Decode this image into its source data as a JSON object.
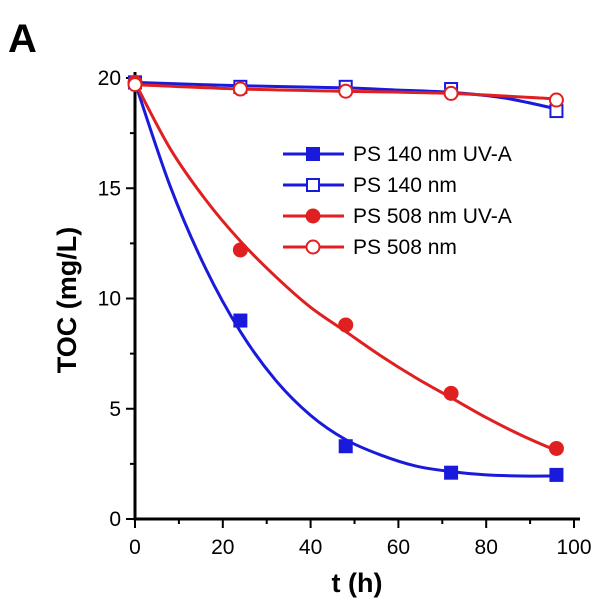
{
  "panel_label": "A",
  "chart_data": {
    "type": "scatter",
    "xlabel": "t (h)",
    "ylabel": "TOC (mg/L)",
    "xlim": [
      0,
      100
    ],
    "ylim": [
      0,
      20
    ],
    "xticks": [
      0,
      20,
      40,
      60,
      80,
      100
    ],
    "yticks": [
      0,
      5,
      10,
      15,
      20
    ],
    "legend_position": "upper-right",
    "series": [
      {
        "name": "PS 140 nm UV-A",
        "color": "#1a1adc",
        "marker": "square",
        "filled": true,
        "x": [
          0,
          24,
          48,
          72,
          96
        ],
        "y": [
          19.8,
          9.0,
          3.3,
          2.1,
          2.0
        ],
        "fit": {
          "x": [
            0,
            8,
            16,
            24,
            32,
            40,
            48,
            56,
            64,
            72,
            80,
            88,
            96
          ],
          "y": [
            19.8,
            15.1,
            11.4,
            8.5,
            6.3,
            4.7,
            3.6,
            2.9,
            2.4,
            2.15,
            2.0,
            1.95,
            1.95
          ]
        }
      },
      {
        "name": "PS 140 nm",
        "color": "#1a1adc",
        "marker": "square",
        "filled": false,
        "x": [
          0,
          24,
          48,
          72,
          96
        ],
        "y": [
          19.8,
          19.6,
          19.6,
          19.5,
          18.5
        ],
        "fit": {
          "x": [
            0,
            24,
            48,
            60,
            72,
            84,
            96
          ],
          "y": [
            19.8,
            19.65,
            19.55,
            19.45,
            19.35,
            19.1,
            18.6
          ]
        }
      },
      {
        "name": "PS 508 nm UV-A",
        "color": "#e02020",
        "marker": "circle",
        "filled": true,
        "x": [
          0,
          24,
          48,
          72,
          96
        ],
        "y": [
          19.8,
          12.2,
          8.8,
          5.7,
          3.2
        ],
        "fit": {
          "x": [
            0,
            8,
            16,
            24,
            32,
            40,
            48,
            56,
            64,
            72,
            80,
            88,
            96
          ],
          "y": [
            19.8,
            16.8,
            14.5,
            12.6,
            11.0,
            9.6,
            8.5,
            7.4,
            6.4,
            5.5,
            4.6,
            3.8,
            3.1
          ]
        }
      },
      {
        "name": "PS 508 nm",
        "color": "#e02020",
        "marker": "circle",
        "filled": false,
        "x": [
          0,
          24,
          48,
          72,
          96
        ],
        "y": [
          19.7,
          19.5,
          19.4,
          19.3,
          19.0
        ],
        "fit": {
          "x": [
            0,
            24,
            48,
            72,
            96
          ],
          "y": [
            19.7,
            19.5,
            19.4,
            19.3,
            19.05
          ]
        }
      }
    ]
  }
}
